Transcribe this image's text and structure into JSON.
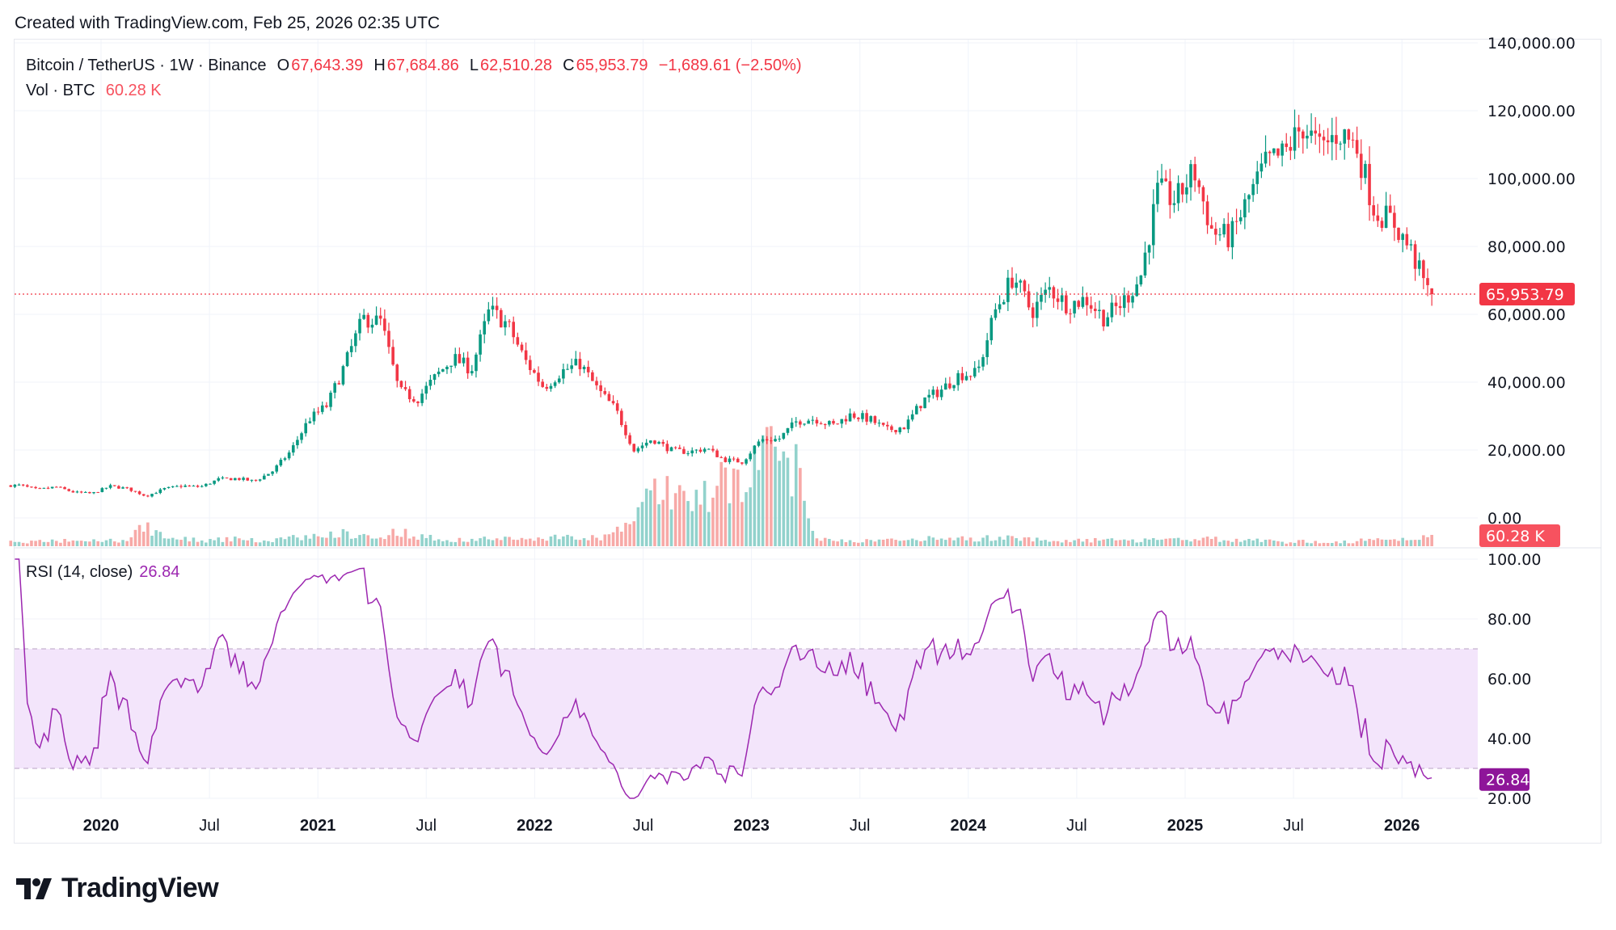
{
  "header": {
    "created": "Created with TradingView.com, Feb 25, 2026 02:35 UTC"
  },
  "legend": {
    "symbol": "Bitcoin / TetherUS · 1W · Binance",
    "o_label": "O",
    "o": "67,643.39",
    "h_label": "H",
    "h": "67,684.86",
    "l_label": "L",
    "l": "62,510.28",
    "c_label": "C",
    "c": "65,953.79",
    "change": "−1,689.61 (−2.50%)",
    "vol_label": "Vol · BTC",
    "vol": "60.28 K"
  },
  "rsi_legend": {
    "label": "RSI (14, close)",
    "value": "26.84"
  },
  "logo": {
    "text": "TradingView"
  },
  "colors": {
    "up": "#089981",
    "down": "#f23645",
    "rsi": "#9c27b0",
    "rsi_band": "#f3e5fb",
    "grid": "#f0f3fa"
  },
  "chart_data": {
    "type": "candlestick",
    "title": "Bitcoin / TetherUS · 1W · Binance",
    "timeframe": "1W",
    "start": "2019-08",
    "monthly_close": [
      9600,
      8300,
      9150,
      7550,
      7200,
      9350,
      8600,
      6400,
      8600,
      9450,
      9140,
      11350,
      11650,
      10780,
      13800,
      19700,
      29000,
      33100,
      45200,
      58800,
      57700,
      37300,
      35000,
      41500,
      47100,
      43800,
      61300,
      57000,
      46200,
      38500,
      43200,
      45500,
      37700,
      31800,
      19900,
      23300,
      20050,
      19400,
      20500,
      17150,
      16550,
      23100,
      23150,
      28500,
      29250,
      27200,
      30450,
      29200,
      25900,
      26950,
      34650,
      37700,
      42300,
      42600,
      61200,
      71300,
      60700,
      67500,
      62700,
      64600,
      59000,
      63300,
      70300,
      96400,
      93500,
      102400,
      84300,
      82500,
      94200,
      104600,
      107100,
      115700,
      108200,
      114000,
      109500,
      90400,
      87500,
      78600,
      65954
    ],
    "monthly_volume_k": [
      22,
      25,
      28,
      30,
      28,
      30,
      35,
      110,
      45,
      40,
      30,
      35,
      38,
      30,
      32,
      45,
      50,
      60,
      70,
      55,
      50,
      80,
      55,
      40,
      35,
      30,
      45,
      40,
      35,
      45,
      50,
      40,
      45,
      70,
      160,
      280,
      300,
      260,
      250,
      380,
      350,
      450,
      480,
      420,
      45,
      35,
      30,
      28,
      35,
      30,
      40,
      38,
      42,
      40,
      45,
      50,
      38,
      32,
      28,
      30,
      35,
      28,
      32,
      45,
      40,
      35,
      40,
      30,
      28,
      30,
      22,
      25,
      22,
      20,
      28,
      35,
      30,
      40,
      60
    ],
    "last_candle": {
      "open": 67643.39,
      "high": 67684.86,
      "low": 62510.28,
      "close": 65953.79,
      "volume_k": 60.28
    },
    "price_axis": {
      "ticks": [
        "140,000.00",
        "120,000.00",
        "100,000.00",
        "80,000.00",
        "60,000.00",
        "40,000.00",
        "20,000.00",
        "0.00"
      ],
      "range": [
        0,
        140000
      ]
    },
    "price_label": "65,953.79",
    "volume_label": "60.28 K",
    "rsi_axis": {
      "ticks": [
        "100.00",
        "80.00",
        "60.00",
        "40.00",
        "20.00"
      ],
      "range": [
        20,
        100
      ],
      "bands": [
        30,
        70
      ]
    },
    "rsi_label": "26.84",
    "x_ticks": [
      {
        "label": "2020",
        "t": 2020.0,
        "bold": true
      },
      {
        "label": "Jul",
        "t": 2020.5
      },
      {
        "label": "2021",
        "t": 2021.0,
        "bold": true
      },
      {
        "label": "Jul",
        "t": 2021.5
      },
      {
        "label": "2022",
        "t": 2022.0,
        "bold": true
      },
      {
        "label": "Jul",
        "t": 2022.5
      },
      {
        "label": "2023",
        "t": 2023.0,
        "bold": true
      },
      {
        "label": "Jul",
        "t": 2023.5
      },
      {
        "label": "2024",
        "t": 2024.0,
        "bold": true
      },
      {
        "label": "Jul",
        "t": 2024.5
      },
      {
        "label": "2025",
        "t": 2025.0,
        "bold": true
      },
      {
        "label": "Jul",
        "t": 2025.5
      },
      {
        "label": "2026",
        "t": 2026.0,
        "bold": true
      }
    ]
  }
}
